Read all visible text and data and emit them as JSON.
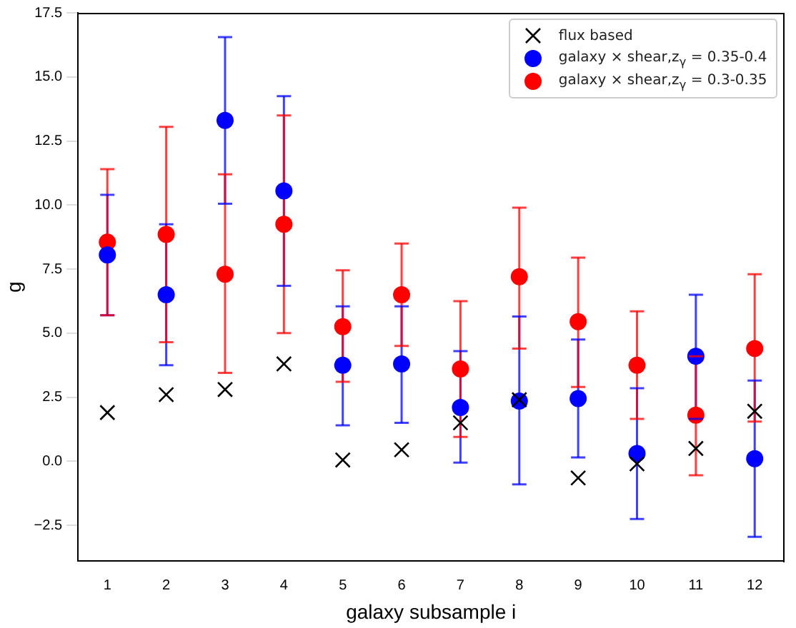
{
  "chart_data": {
    "type": "scatter",
    "xlabel": "galaxy subsample i",
    "ylabel": "g",
    "x": [
      1,
      2,
      3,
      4,
      5,
      6,
      7,
      8,
      9,
      10,
      11,
      12
    ],
    "xlim": [
      0.5,
      12.5
    ],
    "xticks": [
      1,
      2,
      3,
      4,
      5,
      6,
      7,
      8,
      9,
      10,
      11,
      12
    ],
    "ylim": [
      -3.9,
      17.5
    ],
    "yticks": [
      {
        "value": -2.5,
        "label": "−2.5"
      },
      {
        "value": 0,
        "label": "0.0"
      },
      2.5,
      {
        "value": 5,
        "label": "5.0"
      },
      7.5,
      {
        "value": 10,
        "label": "10.0"
      },
      12.5,
      {
        "value": 15,
        "label": "15.0"
      },
      17.5
    ],
    "legend": "top right",
    "grid": false,
    "series": [
      {
        "name": "flux based",
        "color": "#000000",
        "marker": "cross",
        "values": [
          1.9,
          2.6,
          2.8,
          3.8,
          0.05,
          0.45,
          1.5,
          2.4,
          -0.65,
          -0.1,
          0.5,
          1.95
        ]
      },
      {
        "name": "galaxy × shear,z$_{γ}$ = 0.35-0.4",
        "color": "#0000ff",
        "marker": "circle",
        "values": [
          8.05,
          6.5,
          13.3,
          10.55,
          3.75,
          3.8,
          2.1,
          2.35,
          2.45,
          0.3,
          4.1,
          0.1
        ],
        "errors": [
          [
            5.7,
            10.4
          ],
          [
            3.75,
            9.25
          ],
          [
            10.05,
            16.55
          ],
          [
            6.85,
            14.25
          ],
          [
            1.4,
            6.05
          ],
          [
            1.5,
            6.05
          ],
          [
            -0.05,
            4.3
          ],
          [
            -0.9,
            5.65
          ],
          [
            0.15,
            4.75
          ],
          [
            -2.25,
            2.85
          ],
          [
            1.65,
            6.5
          ],
          [
            -2.95,
            3.15
          ]
        ]
      },
      {
        "name": "galaxy × shear,z$_{γ}$ = 0.3-0.35",
        "color": "#ff0000",
        "marker": "circle",
        "values": [
          8.55,
          8.85,
          7.3,
          9.25,
          5.25,
          6.5,
          3.6,
          7.2,
          5.45,
          3.75,
          1.8,
          4.4
        ],
        "errors": [
          [
            5.7,
            11.4
          ],
          [
            4.65,
            13.05
          ],
          [
            3.45,
            11.2
          ],
          [
            5.0,
            13.5
          ],
          [
            3.1,
            7.45
          ],
          [
            4.5,
            8.5
          ],
          [
            0.95,
            6.25
          ],
          [
            4.4,
            9.9
          ],
          [
            2.9,
            7.95
          ],
          [
            1.65,
            5.85
          ],
          [
            -0.55,
            4.1
          ],
          [
            1.55,
            7.3
          ]
        ]
      }
    ]
  }
}
